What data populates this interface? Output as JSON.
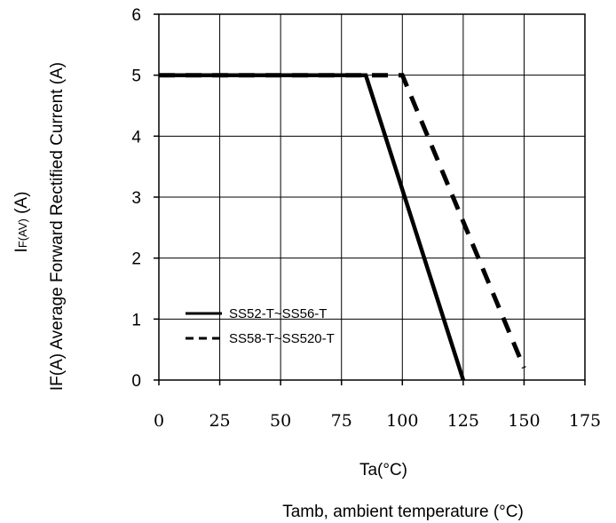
{
  "chart_data": {
    "type": "line",
    "xlabel_line1": "Ta(°C)",
    "xlabel_line2": "Tamb, ambient temperature (°C)",
    "ylabel_main": "IF(A)  Average Forward Rectified Current (A)",
    "ylabel_symbol_base": "I",
    "ylabel_symbol_sub": "F(AV)",
    "ylabel_symbol_unit": " (A)",
    "xlim": [
      0,
      175
    ],
    "ylim": [
      0,
      6
    ],
    "x_ticks": [
      "0",
      "25",
      "50",
      "75",
      "100",
      "125",
      "150",
      "175"
    ],
    "y_ticks": [
      "0",
      "1",
      "2",
      "3",
      "4",
      "5",
      "6"
    ],
    "grid": true,
    "legend_position": "lower-left",
    "series": [
      {
        "name": "SS52-T~SS56-T",
        "style": "solid",
        "color": "#000000",
        "x": [
          0,
          85,
          125
        ],
        "y": [
          5,
          5,
          0
        ]
      },
      {
        "name": "SS58-T~SS520-T",
        "style": "dashed",
        "color": "#000000",
        "x": [
          0,
          100,
          150
        ],
        "y": [
          5,
          5,
          0.2
        ]
      }
    ]
  }
}
